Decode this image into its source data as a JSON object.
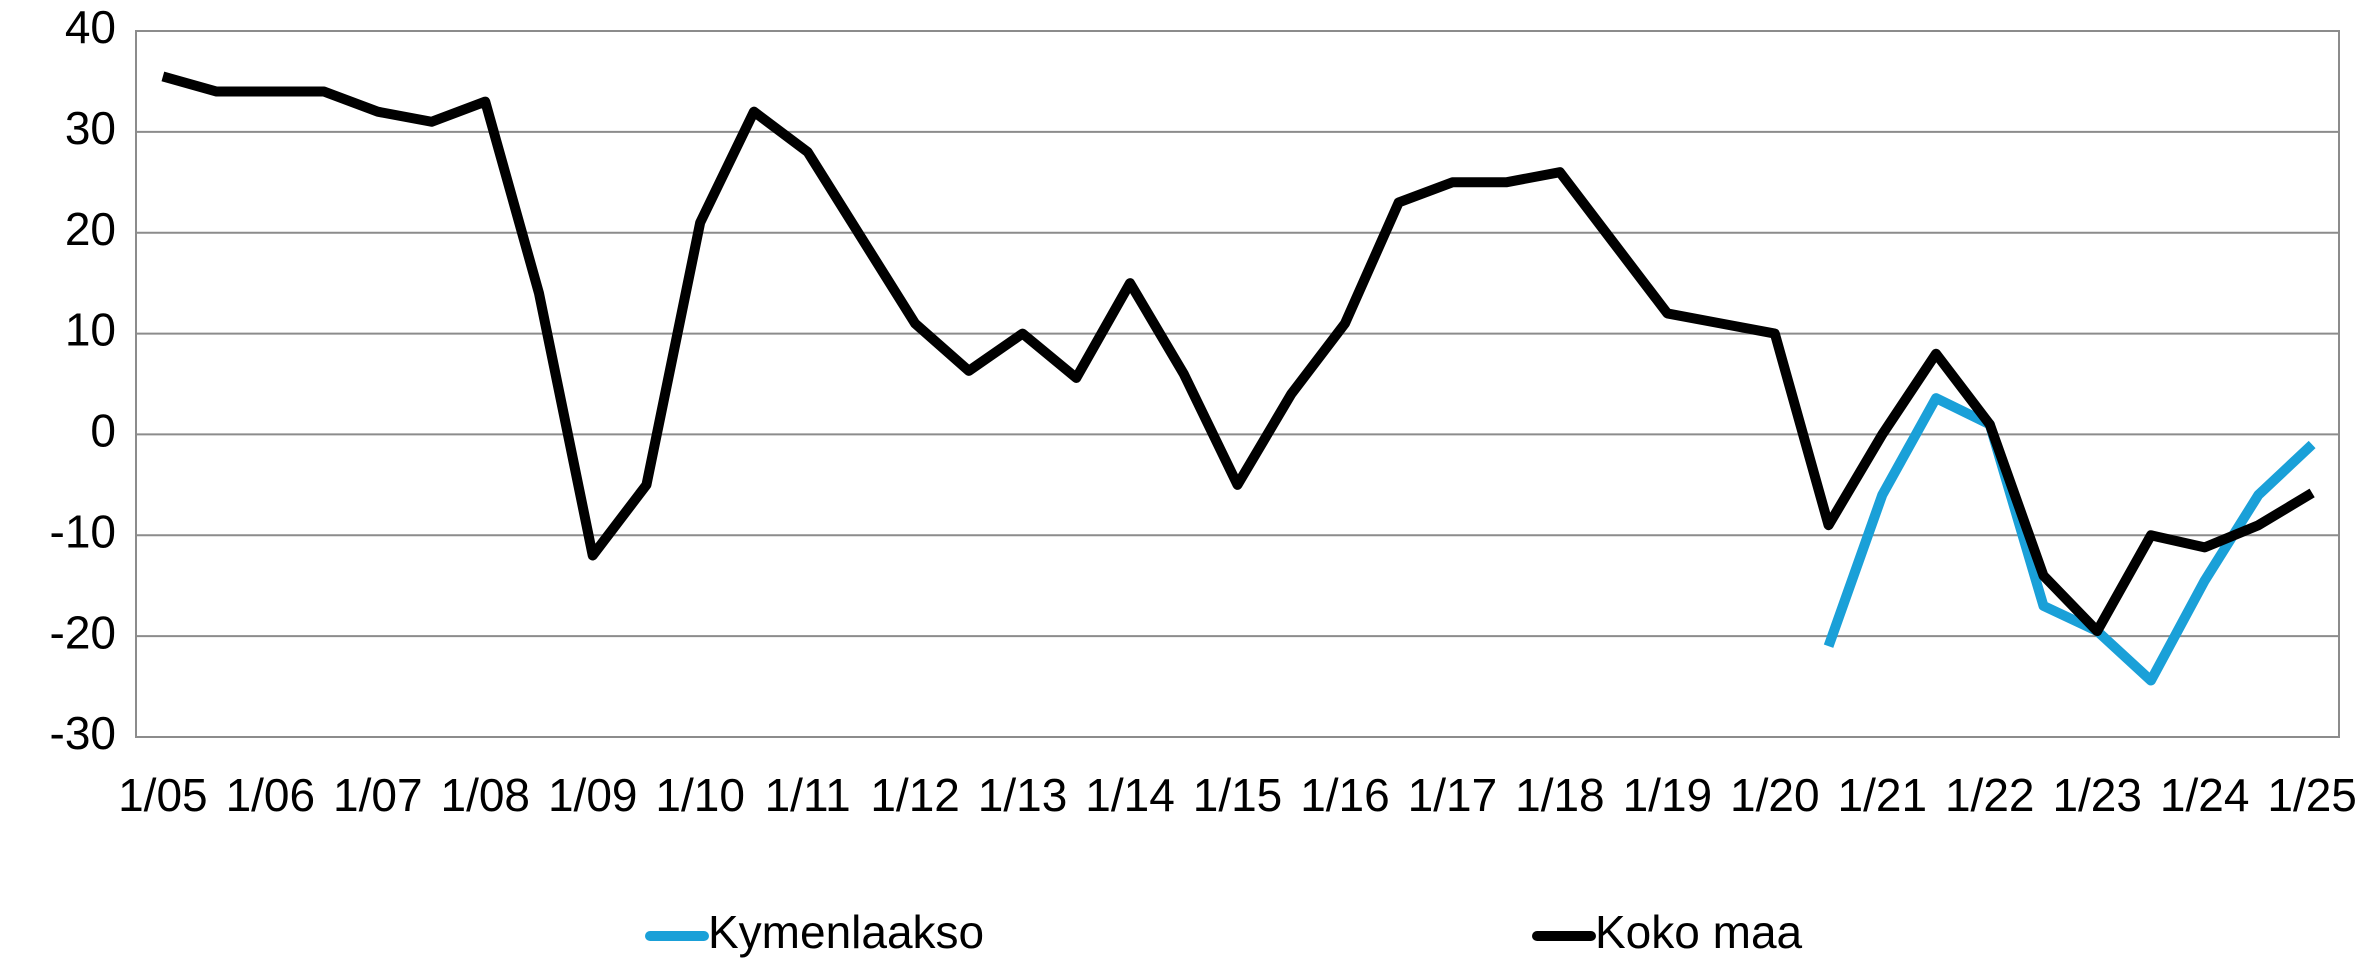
{
  "chart_data": {
    "type": "line",
    "categories": [
      "1/05",
      null,
      "1/06",
      null,
      "1/07",
      null,
      "1/08",
      null,
      "1/09",
      null,
      "1/10",
      null,
      "1/11",
      null,
      "1/12",
      null,
      "1/13",
      null,
      "1/14",
      null,
      "1/15",
      null,
      "1/16",
      null,
      "1/17",
      null,
      "1/18",
      null,
      "1/19",
      null,
      "1/20",
      null,
      "1/21",
      null,
      "1/22",
      null,
      "1/23",
      null,
      "1/24",
      null,
      "1/25"
    ],
    "series": [
      {
        "name": "Kymenlaakso",
        "color": "#1aa0d8",
        "values": [
          null,
          null,
          null,
          null,
          null,
          null,
          null,
          null,
          null,
          null,
          null,
          null,
          null,
          null,
          null,
          null,
          null,
          null,
          null,
          null,
          null,
          null,
          null,
          null,
          null,
          null,
          null,
          null,
          null,
          null,
          null,
          -21,
          -6,
          3.6,
          1,
          -17,
          -19.5,
          -24.4,
          -14.5,
          -6,
          -1
        ]
      },
      {
        "name": "Koko maa",
        "color": "#000000",
        "values": [
          35.5,
          34,
          34,
          34,
          32,
          31,
          33,
          14,
          -12,
          -5,
          21,
          32,
          28,
          19.5,
          11,
          6.3,
          10,
          5.6,
          15,
          6,
          -5,
          4,
          11,
          23,
          25,
          25,
          26,
          19,
          12,
          11,
          10,
          -9,
          0,
          8,
          1,
          -14,
          -19.5,
          -10,
          -11.2,
          -9,
          -5.8
        ]
      }
    ],
    "ylim": [
      -30,
      40
    ],
    "yticks": [
      -30,
      -20,
      -10,
      0,
      10,
      20,
      30,
      40
    ],
    "grid": true,
    "legend": "bottom"
  }
}
